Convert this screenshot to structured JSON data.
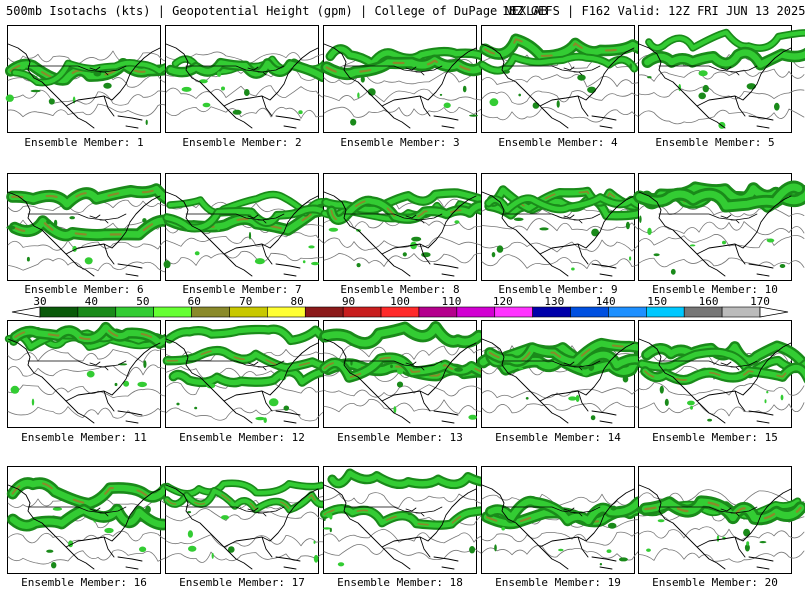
{
  "header": {
    "left": "500mb Isotachs (kts) | Geopotential Height (gpm) | College of DuPage NEXLAB",
    "right": "18Z GEFS | F162 Valid: 12Z FRI JUN 13 2025"
  },
  "panels": [
    {
      "label": "Ensemble Member: 1"
    },
    {
      "label": "Ensemble Member: 2"
    },
    {
      "label": "Ensemble Member: 3"
    },
    {
      "label": "Ensemble Member: 4"
    },
    {
      "label": "Ensemble Member: 5"
    },
    {
      "label": "Ensemble Member: 6"
    },
    {
      "label": "Ensemble Member: 7"
    },
    {
      "label": "Ensemble Member: 8"
    },
    {
      "label": "Ensemble Member: 9"
    },
    {
      "label": "Ensemble Member: 10"
    },
    {
      "label": "Ensemble Member: 11"
    },
    {
      "label": "Ensemble Member: 12"
    },
    {
      "label": "Ensemble Member: 13"
    },
    {
      "label": "Ensemble Member: 14"
    },
    {
      "label": "Ensemble Member: 15"
    },
    {
      "label": "Ensemble Member: 16"
    },
    {
      "label": "Ensemble Member: 17"
    },
    {
      "label": "Ensemble Member: 18"
    },
    {
      "label": "Ensemble Member: 19"
    },
    {
      "label": "Ensemble Member: 20"
    }
  ],
  "colorbar": {
    "labels": [
      "30",
      "40",
      "50",
      "60",
      "70",
      "80",
      "90",
      "100",
      "110",
      "120",
      "130",
      "140",
      "150",
      "160",
      "170"
    ],
    "colors": [
      "#0a5a0a",
      "#1a8a1a",
      "#33cc33",
      "#66ff33",
      "#8a8a2a",
      "#c8c800",
      "#ffff33",
      "#8b1a1a",
      "#c81e1e",
      "#ff2a2a",
      "#b4008c",
      "#d200d2",
      "#ff33ff",
      "#0000aa",
      "#0050e0",
      "#1e90ff",
      "#00c8ff",
      "#777777",
      "#bbbbbb"
    ]
  }
}
